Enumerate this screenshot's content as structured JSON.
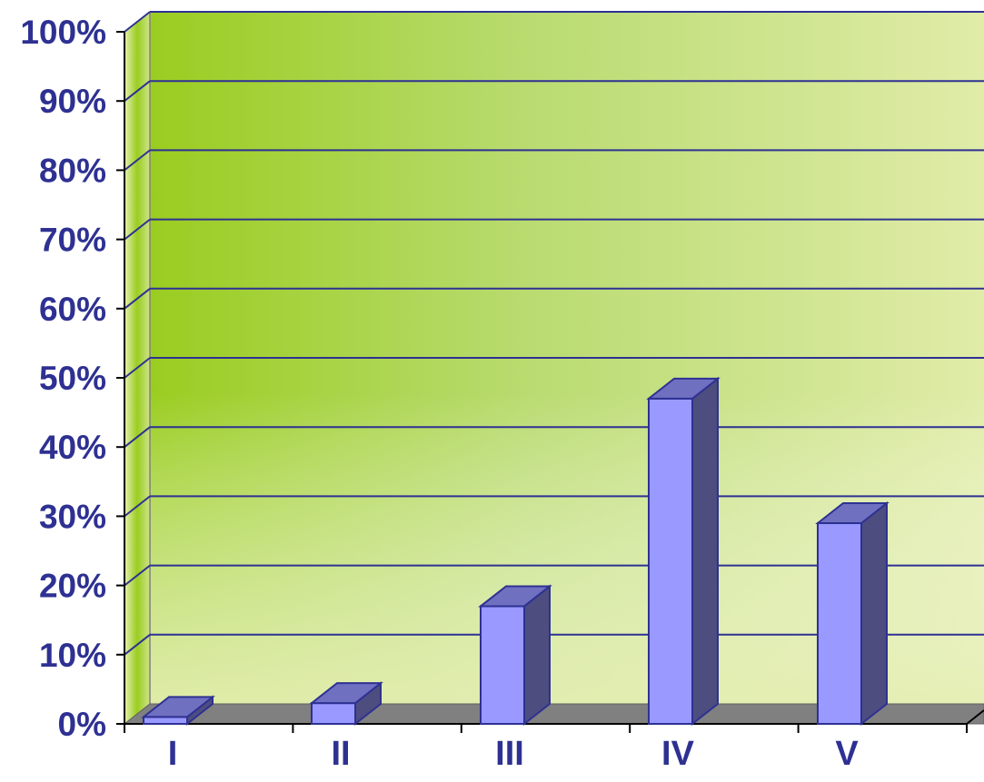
{
  "chart_data": {
    "type": "bar",
    "categories": [
      "I",
      "II",
      "III",
      "IV",
      "V"
    ],
    "values": [
      1,
      3,
      17,
      47,
      29
    ],
    "ylim": [
      0,
      100
    ],
    "yticks": [
      "0%",
      "10%",
      "20%",
      "30%",
      "40%",
      "50%",
      "60%",
      "70%",
      "80%",
      "90%",
      "100%"
    ],
    "grid": true,
    "three_d": true,
    "colors": {
      "bar_front": "#9999ff",
      "bar_side": "#4d4d80",
      "bar_top": "#7070c0",
      "bar_outline": "#2e3192",
      "wall_green": "#9acd20",
      "wall_light": "#e0eca8",
      "floor": "#808080",
      "gridline": "#2e3192",
      "text": "#2e3192"
    }
  }
}
